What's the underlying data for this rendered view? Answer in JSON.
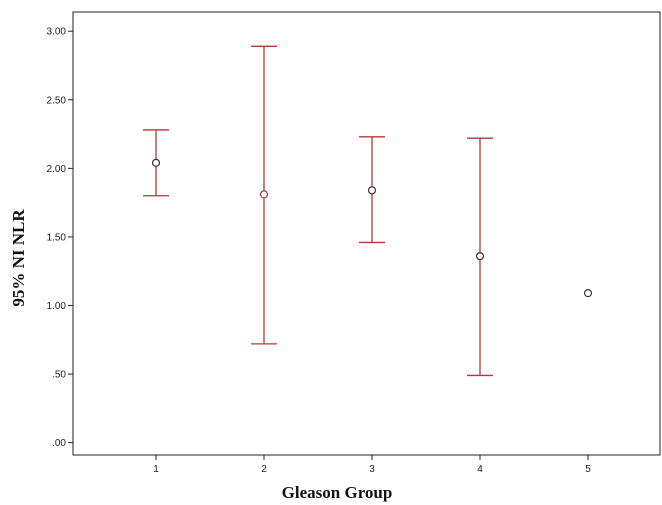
{
  "chart_data": {
    "type": "errorbar",
    "xlabel": "Gleason Group",
    "ylabel": "95% NI NLR",
    "categories": [
      "1",
      "2",
      "3",
      "4",
      "5"
    ],
    "yticks": [
      ".00",
      ".50",
      "1.00",
      "1.50",
      "2.00",
      "2.50",
      "3.00"
    ],
    "ylim": [
      -0.09,
      3.14
    ],
    "grid": false,
    "points": [
      {
        "category": "1",
        "mean": 2.04,
        "lower": 1.8,
        "upper": 2.28
      },
      {
        "category": "2",
        "mean": 1.81,
        "lower": 0.72,
        "upper": 2.89
      },
      {
        "category": "3",
        "mean": 1.84,
        "lower": 1.46,
        "upper": 2.23
      },
      {
        "category": "4",
        "mean": 1.36,
        "lower": 0.49,
        "upper": 2.22
      },
      {
        "category": "5",
        "mean": 1.09,
        "lower": null,
        "upper": null
      }
    ],
    "colors": {
      "errorbar": "#b03a3a",
      "marker_default": "#333333",
      "marker_group2": "#b03a3a"
    }
  }
}
